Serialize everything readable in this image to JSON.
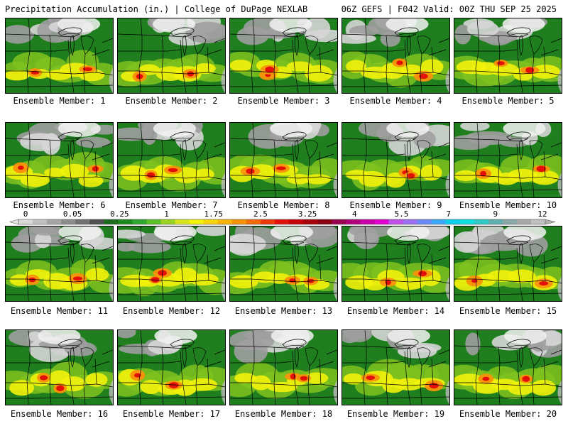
{
  "header": {
    "left_title": "Precipitation Accumulation (in.) | College of DuPage NEXLAB",
    "right_title": "06Z GEFS | F042 Valid: 00Z THU SEP 25 2025"
  },
  "panel_label_prefix": "Ensemble Member: ",
  "members": [
    {
      "label": "Ensemble Member: 1",
      "member": 1
    },
    {
      "label": "Ensemble Member: 2",
      "member": 2
    },
    {
      "label": "Ensemble Member: 3",
      "member": 3
    },
    {
      "label": "Ensemble Member: 4",
      "member": 4
    },
    {
      "label": "Ensemble Member: 5",
      "member": 5
    },
    {
      "label": "Ensemble Member: 6",
      "member": 6
    },
    {
      "label": "Ensemble Member: 7",
      "member": 7
    },
    {
      "label": "Ensemble Member: 8",
      "member": 8
    },
    {
      "label": "Ensemble Member: 9",
      "member": 9
    },
    {
      "label": "Ensemble Member: 10",
      "member": 10
    },
    {
      "label": "Ensemble Member: 11",
      "member": 11
    },
    {
      "label": "Ensemble Member: 12",
      "member": 12
    },
    {
      "label": "Ensemble Member: 13",
      "member": 13
    },
    {
      "label": "Ensemble Member: 14",
      "member": 14
    },
    {
      "label": "Ensemble Member: 15",
      "member": 15
    },
    {
      "label": "Ensemble Member: 16",
      "member": 16
    },
    {
      "label": "Ensemble Member: 17",
      "member": 17
    },
    {
      "label": "Ensemble Member: 18",
      "member": 18
    },
    {
      "label": "Ensemble Member: 19",
      "member": 19
    },
    {
      "label": "Ensemble Member: 20",
      "member": 20
    }
  ],
  "colorbar": {
    "tick_labels": [
      "0",
      "0.05",
      "0.25",
      "1",
      "1.75",
      "2.5",
      "3.25",
      "4",
      "5.5",
      "7",
      "9",
      "12"
    ],
    "colors": [
      "#d9d9d9",
      "#c0c0c0",
      "#a6a6a6",
      "#8c8c8c",
      "#707070",
      "#505050",
      "#1d6b1d",
      "#1f8a1f",
      "#2ea82e",
      "#5cc02a",
      "#9ad322",
      "#d7e51f",
      "#f2f20a",
      "#f6d40a",
      "#f8b30a",
      "#f8920a",
      "#f46a0a",
      "#ee3a0a",
      "#e3100a",
      "#c8000a",
      "#a8000a",
      "#8a0010",
      "#9a0050",
      "#b0007a",
      "#c800a8",
      "#e000d0",
      "#c050e8",
      "#9a70f0",
      "#6a8af8",
      "#3aa8f8",
      "#10d0f0",
      "#10e0e0",
      "#30c8c8",
      "#60b0b0",
      "#8aa8a8",
      "#a8a8a8",
      "#c0c0c0"
    ],
    "units": "in."
  },
  "colors": {
    "background": "#1f7f1f",
    "map_lines": "#000000",
    "light_precip": "#7fc21e",
    "moderate_precip": "#f2f20a",
    "heavy_precip": "#e3100a",
    "no_precip_gray": "#bdbdbd"
  }
}
